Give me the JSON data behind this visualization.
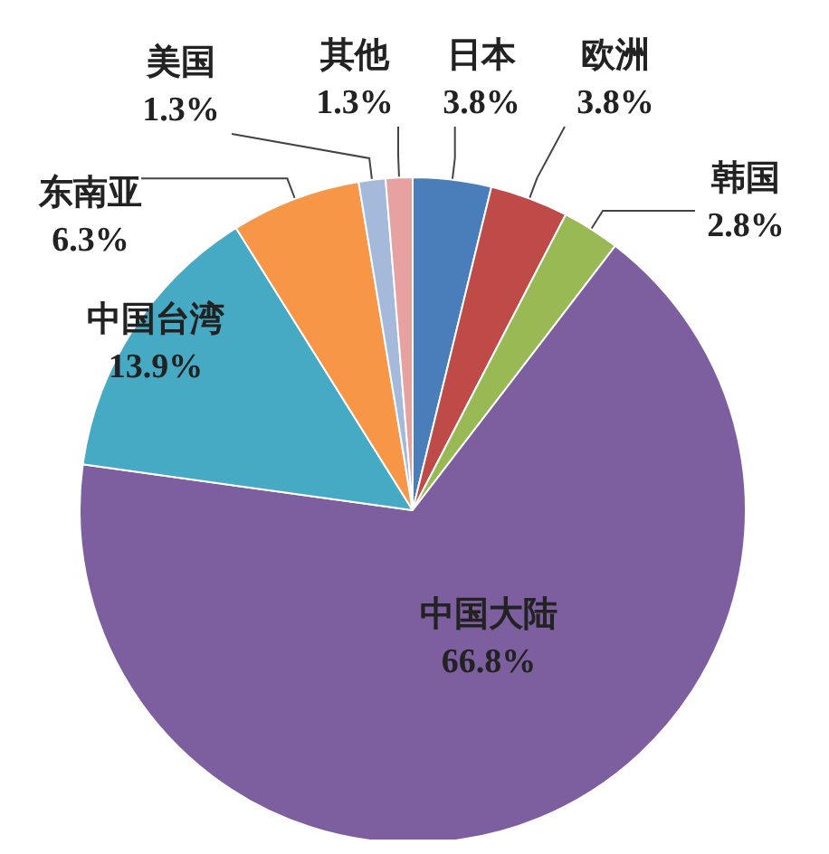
{
  "chart_data": {
    "type": "pie",
    "categories": [
      "日本",
      "欧洲",
      "韩国",
      "中国大陆",
      "中国台湾",
      "东南亚",
      "美国",
      "其他"
    ],
    "values": [
      3.8,
      3.8,
      2.8,
      66.8,
      13.9,
      6.3,
      1.3,
      1.3
    ],
    "value_labels": [
      "3.8%",
      "3.8%",
      "2.8%",
      "66.8%",
      "13.9%",
      "6.3%",
      "1.3%",
      "1.3%"
    ],
    "colors": [
      "#4a7ebb",
      "#be4b48",
      "#98b954",
      "#7d5fa0",
      "#46aac5",
      "#f79646",
      "#a5b9db",
      "#e6a1a0"
    ],
    "legend": false
  }
}
